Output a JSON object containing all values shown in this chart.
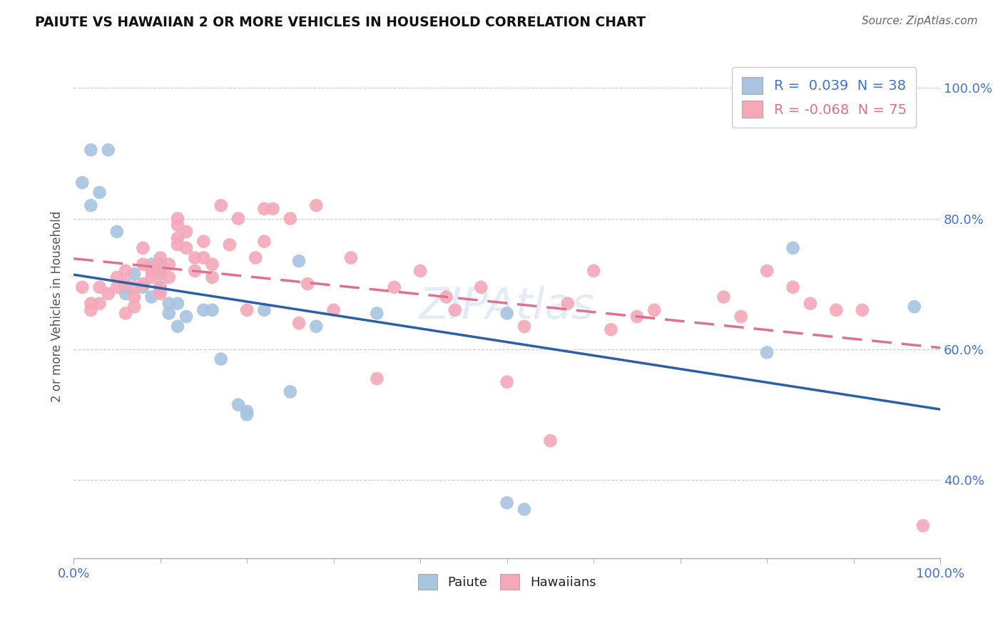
{
  "title": "PAIUTE VS HAWAIIAN 2 OR MORE VEHICLES IN HOUSEHOLD CORRELATION CHART",
  "source_text": "Source: ZipAtlas.com",
  "ylabel": "2 or more Vehicles in Household",
  "xlim": [
    0,
    1.0
  ],
  "ylim": [
    0.28,
    1.05
  ],
  "y_tick_labels": [
    "40.0%",
    "60.0%",
    "80.0%",
    "100.0%"
  ],
  "y_tick_positions": [
    0.4,
    0.6,
    0.8,
    1.0
  ],
  "paiute_R": "0.039",
  "paiute_N": "38",
  "hawaiian_R": "-0.068",
  "hawaiian_N": "75",
  "paiute_color": "#a8c4e0",
  "hawaiian_color": "#f4a8b8",
  "paiute_line_color": "#2b5fa8",
  "hawaiian_line_color": "#e07090",
  "grid_color": "#cccccc",
  "background_color": "#ffffff",
  "legend_r_color_blue": "#4472c4",
  "paiute_x": [
    0.02,
    0.04,
    0.01,
    0.03,
    0.05,
    0.06,
    0.07,
    0.08,
    0.09,
    0.09,
    0.1,
    0.1,
    0.11,
    0.11,
    0.12,
    0.13,
    0.15,
    0.16,
    0.17,
    0.19,
    0.2,
    0.22,
    0.25,
    0.26,
    0.28,
    0.35,
    0.5,
    0.52,
    0.8,
    0.83,
    0.97,
    0.02,
    0.06,
    0.1,
    0.1,
    0.12,
    0.2,
    0.5
  ],
  "paiute_y": [
    0.905,
    0.905,
    0.855,
    0.84,
    0.78,
    0.695,
    0.715,
    0.695,
    0.73,
    0.68,
    0.73,
    0.695,
    0.67,
    0.655,
    0.635,
    0.65,
    0.66,
    0.66,
    0.585,
    0.515,
    0.505,
    0.66,
    0.535,
    0.735,
    0.635,
    0.655,
    0.365,
    0.355,
    0.595,
    0.755,
    0.665,
    0.82,
    0.685,
    0.72,
    0.69,
    0.67,
    0.5,
    0.655
  ],
  "hawaiian_x": [
    0.01,
    0.02,
    0.02,
    0.03,
    0.03,
    0.04,
    0.05,
    0.05,
    0.06,
    0.06,
    0.07,
    0.07,
    0.07,
    0.08,
    0.08,
    0.09,
    0.09,
    0.09,
    0.1,
    0.1,
    0.1,
    0.1,
    0.11,
    0.12,
    0.12,
    0.12,
    0.13,
    0.13,
    0.14,
    0.15,
    0.15,
    0.16,
    0.16,
    0.17,
    0.18,
    0.19,
    0.2,
    0.21,
    0.22,
    0.23,
    0.25,
    0.27,
    0.28,
    0.3,
    0.32,
    0.35,
    0.37,
    0.4,
    0.43,
    0.47,
    0.5,
    0.52,
    0.55,
    0.6,
    0.62,
    0.65,
    0.75,
    0.8,
    0.83,
    0.85,
    0.88,
    0.91,
    0.98,
    0.06,
    0.08,
    0.1,
    0.11,
    0.12,
    0.14,
    0.22,
    0.26,
    0.44,
    0.57,
    0.67,
    0.77
  ],
  "hawaiian_y": [
    0.695,
    0.67,
    0.66,
    0.695,
    0.67,
    0.685,
    0.71,
    0.695,
    0.72,
    0.655,
    0.695,
    0.68,
    0.665,
    0.755,
    0.7,
    0.725,
    0.72,
    0.71,
    0.74,
    0.715,
    0.695,
    0.685,
    0.73,
    0.8,
    0.77,
    0.76,
    0.78,
    0.755,
    0.74,
    0.765,
    0.74,
    0.73,
    0.71,
    0.82,
    0.76,
    0.8,
    0.66,
    0.74,
    0.765,
    0.815,
    0.8,
    0.7,
    0.82,
    0.66,
    0.74,
    0.555,
    0.695,
    0.72,
    0.68,
    0.695,
    0.55,
    0.635,
    0.46,
    0.72,
    0.63,
    0.65,
    0.68,
    0.72,
    0.695,
    0.67,
    0.66,
    0.66,
    0.33,
    0.7,
    0.73,
    0.73,
    0.71,
    0.79,
    0.72,
    0.815,
    0.64,
    0.66,
    0.67,
    0.66,
    0.65
  ]
}
